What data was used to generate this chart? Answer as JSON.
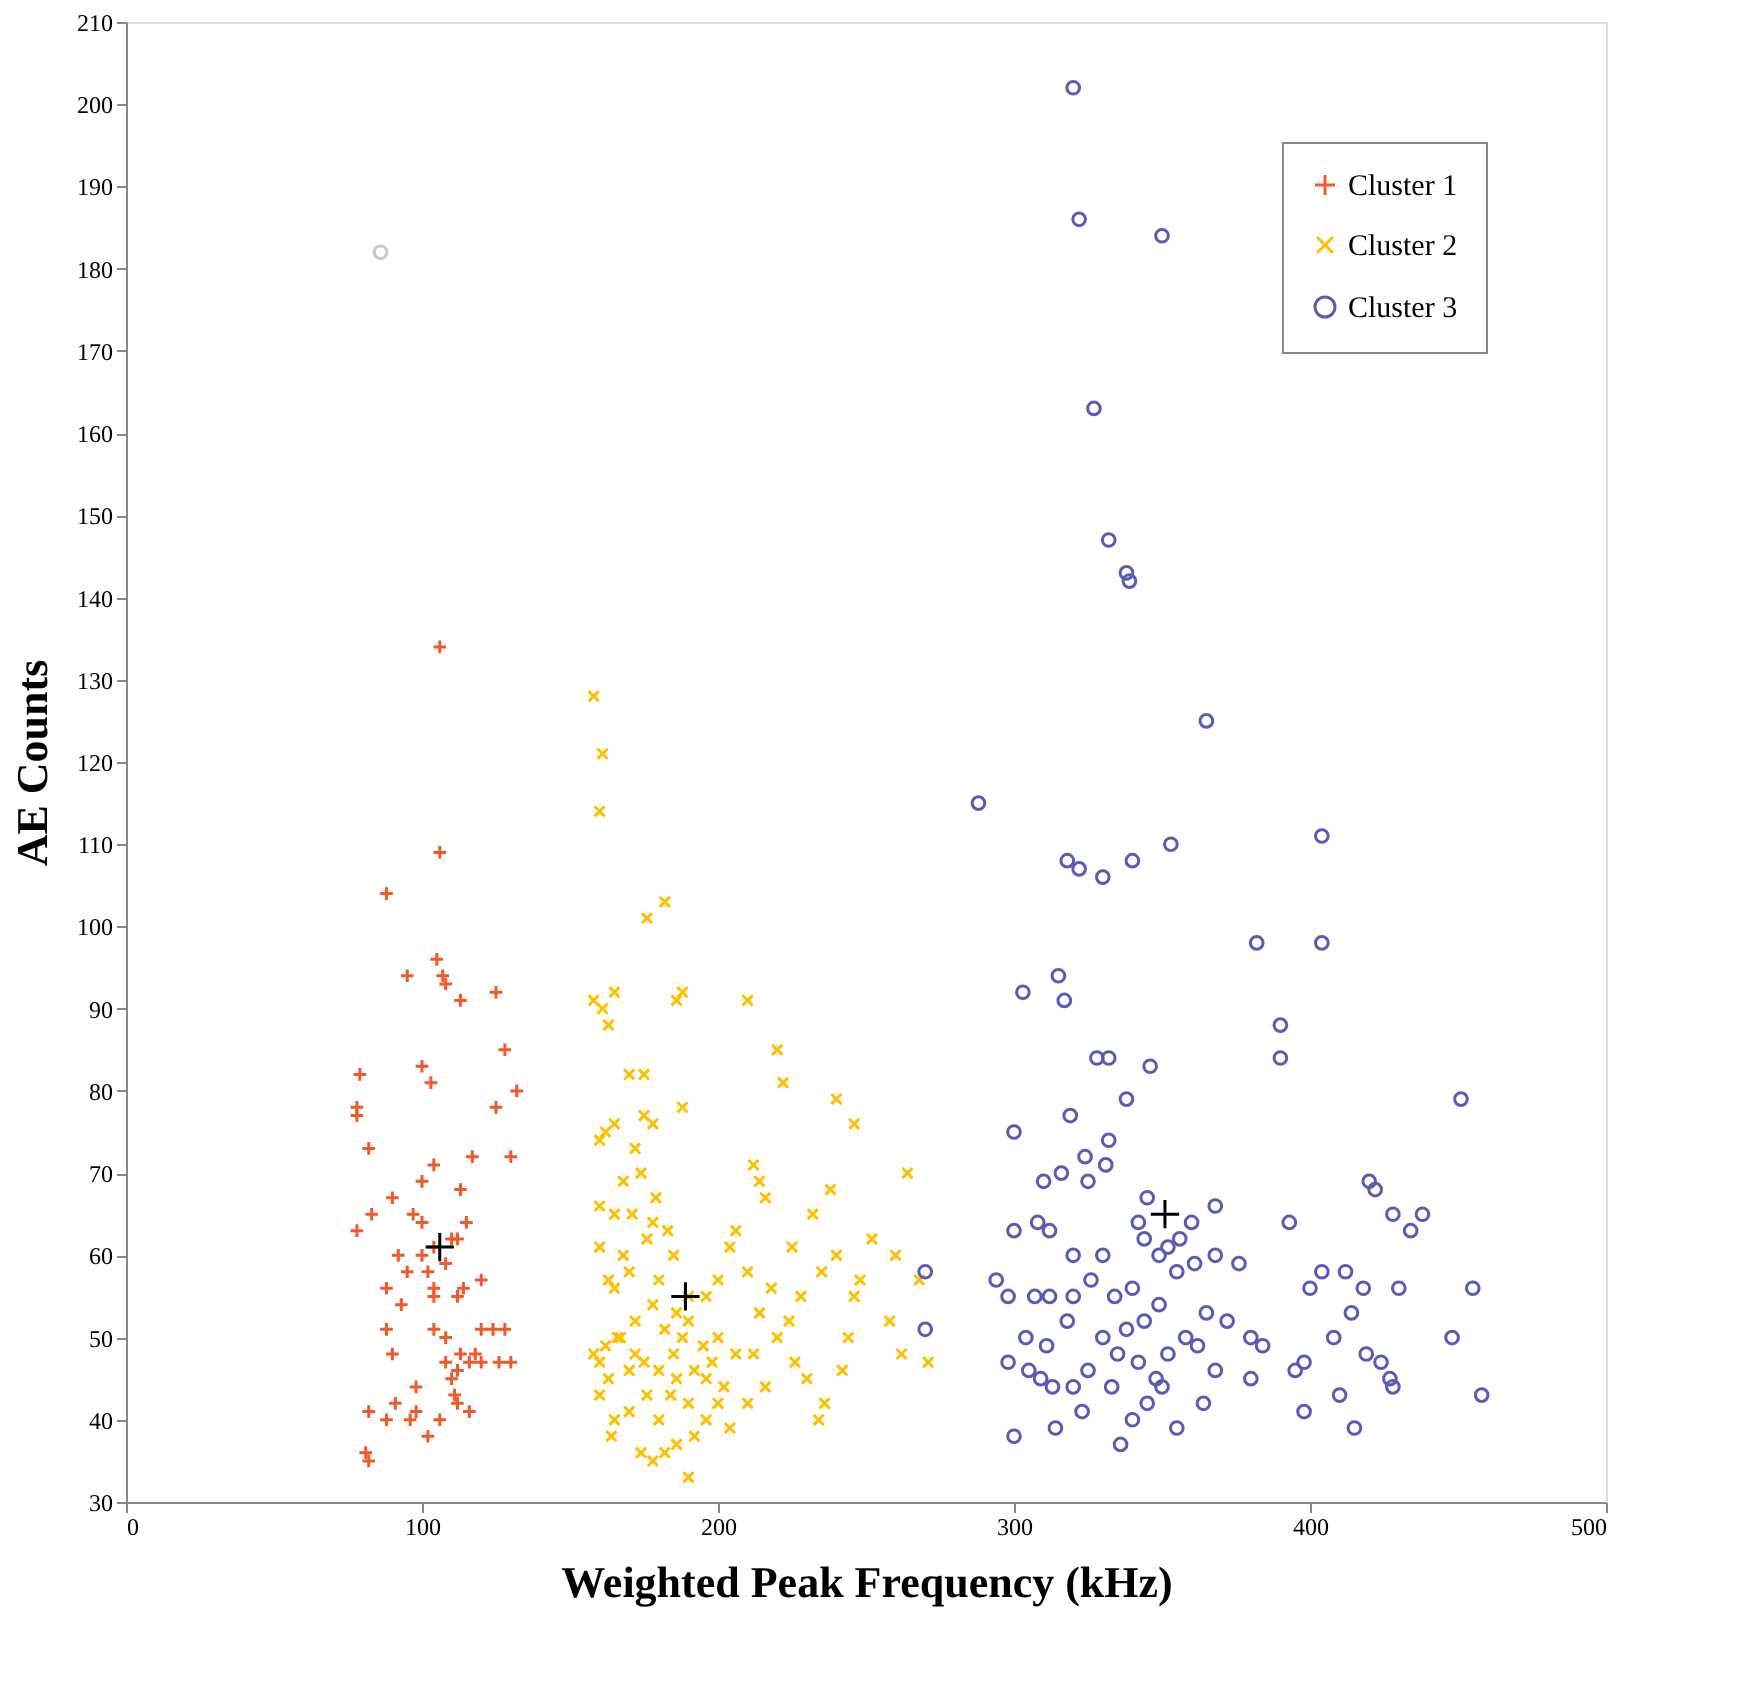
{
  "chart_data": {
    "type": "scatter",
    "xlabel": "Weighted Peak Frequency (kHz)",
    "ylabel": "AE Counts",
    "xlim": [
      0,
      500
    ],
    "ylim": [
      30,
      210
    ],
    "xticks": [
      0,
      100,
      200,
      300,
      400,
      500
    ],
    "yticks": [
      30,
      40,
      50,
      60,
      70,
      80,
      90,
      100,
      110,
      120,
      130,
      140,
      150,
      160,
      170,
      180,
      190,
      200,
      210
    ],
    "grid": false,
    "legend": "top right",
    "series": [
      {
        "name": "Cluster 1",
        "color": "#f05a28",
        "marker": "cross",
        "x": [
          106,
          106,
          88,
          105,
          107,
          95,
          108,
          125,
          113,
          128,
          100,
          103,
          79,
          78,
          125,
          132,
          78,
          82,
          130,
          104,
          117,
          90,
          100,
          113,
          97,
          83,
          78,
          92,
          100,
          104,
          110,
          115,
          95,
          102,
          108,
          112,
          88,
          93,
          104,
          112,
          120,
          88,
          104,
          120,
          124,
          128,
          108,
          113,
          118,
          90,
          108,
          112,
          116,
          120,
          126,
          130,
          110,
          111,
          112,
          116,
          91,
          88,
          96,
          98,
          106,
          102,
          82,
          81,
          82,
          98,
          114,
          100,
          104
        ],
        "values": [
          134,
          109,
          104,
          96,
          94,
          94,
          93,
          92,
          91,
          85,
          83,
          81,
          82,
          78,
          78,
          80,
          77,
          73,
          72,
          71,
          72,
          67,
          69,
          68,
          65,
          65,
          63,
          60,
          60,
          61,
          62,
          64,
          58,
          58,
          59,
          62,
          56,
          54,
          56,
          55,
          57,
          51,
          51,
          51,
          51,
          51,
          50,
          48,
          48,
          48,
          47,
          46,
          47,
          47,
          47,
          47,
          45,
          43,
          42,
          41,
          42,
          40,
          40,
          41,
          40,
          38,
          41,
          36,
          35,
          44,
          56,
          64,
          55
        ]
      },
      {
        "name": "Cluster 2",
        "color": "#ffc000",
        "marker": "x",
        "x": [
          158,
          161,
          160,
          182,
          176,
          158,
          161,
          165,
          186,
          188,
          210,
          220,
          222,
          163,
          175,
          170,
          165,
          162,
          175,
          178,
          188,
          160,
          172,
          240,
          246,
          264,
          212,
          214,
          216,
          238,
          260,
          268,
          246,
          252,
          232,
          225,
          235,
          240,
          248,
          258,
          262,
          271,
          244,
          242,
          230,
          226,
          236,
          234,
          210,
          218,
          206,
          204,
          196,
          200,
          190,
          185,
          183,
          178,
          171,
          165,
          160,
          168,
          174,
          179,
          160,
          163,
          168,
          176,
          165,
          170,
          180,
          186,
          190,
          195,
          192,
          188,
          182,
          178,
          172,
          167,
          162,
          160,
          158,
          163,
          170,
          175,
          180,
          185,
          198,
          202,
          206,
          212,
          216,
          210,
          200,
          196,
          190,
          184,
          176,
          170,
          165,
          164,
          174,
          178,
          182,
          186,
          190,
          160,
          166,
          200,
          220,
          224,
          214,
          228,
          180,
          192,
          204,
          196,
          172,
          186
        ],
        "values": [
          128,
          121,
          114,
          103,
          101,
          91,
          90,
          92,
          91,
          92,
          91,
          85,
          81,
          88,
          82,
          82,
          76,
          75,
          77,
          76,
          78,
          74,
          73,
          79,
          76,
          70,
          71,
          69,
          67,
          68,
          60,
          57,
          55,
          62,
          65,
          61,
          58,
          60,
          57,
          52,
          48,
          47,
          50,
          46,
          45,
          47,
          42,
          40,
          58,
          56,
          63,
          61,
          55,
          57,
          55,
          60,
          63,
          64,
          65,
          65,
          66,
          69,
          70,
          67,
          61,
          57,
          60,
          62,
          56,
          58,
          57,
          53,
          52,
          49,
          46,
          50,
          51,
          54,
          52,
          50,
          49,
          47,
          48,
          45,
          46,
          47,
          46,
          48,
          47,
          44,
          48,
          48,
          44,
          42,
          42,
          40,
          42,
          43,
          43,
          41,
          40,
          38,
          36,
          35,
          36,
          37,
          33,
          43,
          50,
          50,
          50,
          52,
          53,
          55,
          40,
          38,
          39,
          45,
          48,
          45
        ]
      },
      {
        "name": "Cluster 3",
        "color": "#5b5bb4",
        "marker": "circle",
        "x": [
          320,
          322,
          350,
          327,
          332,
          338,
          339,
          365,
          288,
          318,
          322,
          330,
          340,
          353,
          382,
          404,
          404,
          390,
          390,
          303,
          315,
          317,
          328,
          332,
          319,
          300,
          338,
          346,
          324,
          332,
          331,
          325,
          316,
          310,
          308,
          312,
          320,
          300,
          294,
          298,
          307,
          312,
          304,
          311,
          298,
          305,
          309,
          313,
          300,
          314,
          323,
          320,
          333,
          325,
          335,
          330,
          338,
          334,
          344,
          349,
          355,
          352,
          344,
          342,
          349,
          356,
          361,
          345,
          340,
          342,
          348,
          352,
          358,
          362,
          365,
          368,
          364,
          350,
          340,
          345,
          355,
          336,
          330,
          326,
          320,
          318,
          380,
          384,
          380,
          395,
          398,
          398,
          410,
          415,
          419,
          414,
          418,
          408,
          400,
          404,
          412,
          420,
          422,
          428,
          434,
          438,
          430,
          424,
          428,
          427,
          448,
          451,
          455,
          458,
          368,
          376,
          372,
          393,
          270,
          270,
          360,
          368
        ],
        "values": [
          202,
          186,
          184,
          163,
          147,
          143,
          142,
          125,
          115,
          108,
          107,
          106,
          108,
          110,
          98,
          111,
          98,
          88,
          84,
          92,
          94,
          91,
          84,
          84,
          77,
          75,
          79,
          83,
          72,
          74,
          71,
          69,
          70,
          69,
          64,
          63,
          60,
          63,
          57,
          55,
          55,
          55,
          50,
          49,
          47,
          46,
          45,
          44,
          38,
          39,
          41,
          44,
          44,
          46,
          48,
          50,
          51,
          55,
          52,
          54,
          58,
          61,
          62,
          64,
          60,
          62,
          59,
          67,
          56,
          47,
          45,
          48,
          50,
          49,
          53,
          46,
          42,
          44,
          40,
          42,
          39,
          37,
          60,
          57,
          55,
          52,
          50,
          49,
          45,
          46,
          47,
          41,
          43,
          39,
          48,
          53,
          56,
          50,
          56,
          58,
          58,
          69,
          68,
          65,
          63,
          65,
          56,
          47,
          44,
          45,
          50,
          79,
          56,
          43,
          60,
          59,
          52,
          64,
          58,
          51,
          64,
          66
        ]
      },
      {
        "color": "#000000",
        "marker": "cross",
        "x": [
          106,
          189,
          351
        ],
        "values": [
          61,
          55,
          65
        ]
      },
      {
        "color": "#c8c8c8",
        "marker": "circle",
        "x": [
          86
        ],
        "values": [
          182
        ]
      }
    ]
  }
}
